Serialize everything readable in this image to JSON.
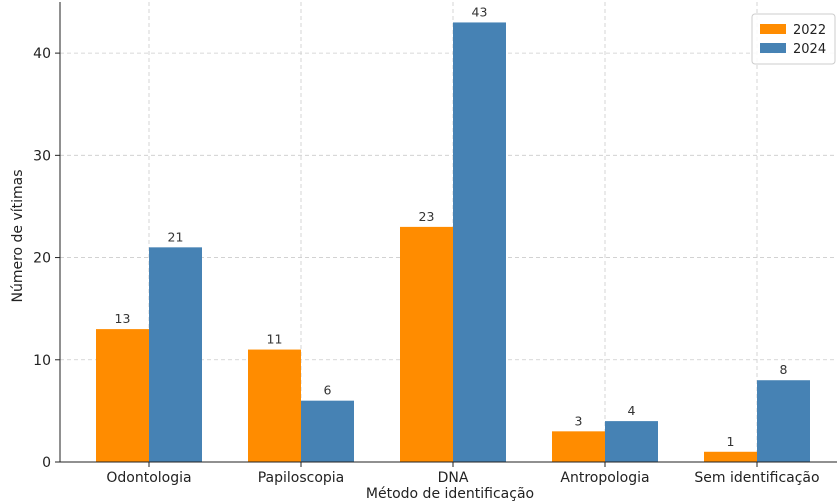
{
  "chart_data": {
    "type": "bar",
    "title": "",
    "xlabel": "Método de identificação",
    "ylabel": "Número de vítimas",
    "categories": [
      "Odontologia",
      "Papiloscopia",
      "DNA",
      "Antropologia",
      "Sem identificação"
    ],
    "series": [
      {
        "name": "2022",
        "color": "#ff8c00",
        "values": [
          13,
          11,
          23,
          3,
          1
        ]
      },
      {
        "name": "2024",
        "color": "#4682b4",
        "values": [
          21,
          6,
          43,
          4,
          8
        ]
      }
    ],
    "ylim": [
      0,
      45
    ],
    "yticks": [
      0,
      10,
      20,
      30,
      40
    ],
    "grid": true,
    "legend": "top-right"
  }
}
